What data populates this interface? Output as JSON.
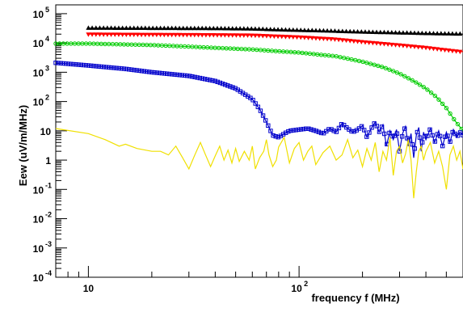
{
  "chart_data": {
    "type": "line",
    "title": "",
    "xlabel": "frequency f (MHz)",
    "ylabel": "Eew (uV/m/MHz)",
    "x_scale": "log",
    "y_scale": "log",
    "xlim": [
      7,
      600
    ],
    "ylim": [
      0.0001,
      200000
    ],
    "grid": false,
    "legend": "none",
    "x_ticks": [
      {
        "value": 10,
        "label": "10"
      },
      {
        "value": 100,
        "label": "10",
        "exp": "2"
      }
    ],
    "y_ticks": [
      {
        "value": 0.0001,
        "label": "10",
        "exp": "-4"
      },
      {
        "value": 0.001,
        "label": "10",
        "exp": "-3"
      },
      {
        "value": 0.01,
        "label": "10",
        "exp": "-2"
      },
      {
        "value": 0.1,
        "label": "10",
        "exp": "-1"
      },
      {
        "value": 1,
        "label": "1"
      },
      {
        "value": 10,
        "label": "10"
      },
      {
        "value": 100,
        "label": "10",
        "exp": "2"
      },
      {
        "value": 1000,
        "label": "10",
        "exp": "3"
      },
      {
        "value": 10000,
        "label": "10",
        "exp": "4"
      },
      {
        "value": 100000,
        "label": "10",
        "exp": "5"
      }
    ],
    "series": [
      {
        "color": "#000000",
        "marker": "triangle-up",
        "points": [
          [
            10,
            32000
          ],
          [
            20,
            31500
          ],
          [
            40,
            31000
          ],
          [
            60,
            30000
          ],
          [
            80,
            28000
          ],
          [
            100,
            27000
          ],
          [
            150,
            25000
          ],
          [
            200,
            23500
          ],
          [
            300,
            22000
          ],
          [
            400,
            21000
          ],
          [
            600,
            20000
          ]
        ]
      },
      {
        "color": "#ff0000",
        "marker": "triangle-down",
        "points": [
          [
            10,
            20000
          ],
          [
            20,
            19500
          ],
          [
            40,
            19000
          ],
          [
            60,
            18500
          ],
          [
            80,
            17000
          ],
          [
            100,
            16000
          ],
          [
            150,
            13500
          ],
          [
            200,
            11000
          ],
          [
            300,
            8500
          ],
          [
            400,
            7000
          ],
          [
            500,
            5800
          ],
          [
            600,
            5000
          ]
        ]
      },
      {
        "color": "#00cc00",
        "marker": "circle",
        "points": [
          [
            7,
            9500
          ],
          [
            10,
            9500
          ],
          [
            20,
            8500
          ],
          [
            30,
            7500
          ],
          [
            40,
            6800
          ],
          [
            60,
            6000
          ],
          [
            80,
            5200
          ],
          [
            100,
            4700
          ],
          [
            150,
            3500
          ],
          [
            200,
            2300
          ],
          [
            250,
            1500
          ],
          [
            300,
            900
          ],
          [
            350,
            500
          ],
          [
            400,
            280
          ],
          [
            450,
            140
          ],
          [
            500,
            60
          ],
          [
            550,
            22
          ],
          [
            600,
            10
          ]
        ]
      },
      {
        "color": "#0000cc",
        "marker": "square",
        "points": [
          [
            7,
            2100
          ],
          [
            10,
            1700
          ],
          [
            15,
            1300
          ],
          [
            20,
            1000
          ],
          [
            30,
            750
          ],
          [
            40,
            500
          ],
          [
            50,
            280
          ],
          [
            60,
            120
          ],
          [
            65,
            55
          ],
          [
            70,
            20
          ],
          [
            75,
            7
          ],
          [
            80,
            6
          ],
          [
            85,
            8
          ],
          [
            90,
            10
          ],
          [
            100,
            11
          ],
          [
            110,
            12
          ],
          [
            120,
            10
          ],
          [
            130,
            8
          ],
          [
            140,
            12
          ],
          [
            150,
            9
          ],
          [
            160,
            18
          ],
          [
            170,
            12
          ],
          [
            180,
            9
          ],
          [
            190,
            11
          ],
          [
            200,
            15
          ],
          [
            210,
            6
          ],
          [
            220,
            12
          ],
          [
            230,
            20
          ],
          [
            240,
            9
          ],
          [
            250,
            16
          ],
          [
            260,
            3
          ],
          [
            270,
            10
          ],
          [
            280,
            5
          ],
          [
            290,
            11
          ],
          [
            300,
            2
          ],
          [
            310,
            8
          ],
          [
            320,
            14
          ],
          [
            330,
            3
          ],
          [
            340,
            8
          ],
          [
            350,
            1.2
          ],
          [
            360,
            7
          ],
          [
            370,
            13
          ],
          [
            380,
            2
          ],
          [
            390,
            9
          ],
          [
            400,
            5
          ],
          [
            420,
            12
          ],
          [
            440,
            4
          ],
          [
            460,
            10
          ],
          [
            480,
            3
          ],
          [
            500,
            9
          ],
          [
            520,
            4
          ],
          [
            540,
            11
          ],
          [
            560,
            6
          ],
          [
            580,
            9
          ],
          [
            600,
            7
          ]
        ]
      },
      {
        "color": "#f0e000",
        "marker": "none",
        "points": [
          [
            7,
            12
          ],
          [
            10,
            8
          ],
          [
            12,
            5
          ],
          [
            14,
            3
          ],
          [
            15,
            3.5
          ],
          [
            17,
            2.5
          ],
          [
            20,
            2
          ],
          [
            22,
            2
          ],
          [
            24,
            1.5
          ],
          [
            26,
            3
          ],
          [
            28,
            1.2
          ],
          [
            30,
            0.5
          ],
          [
            32,
            1.5
          ],
          [
            34,
            4
          ],
          [
            36,
            1.5
          ],
          [
            38,
            0.6
          ],
          [
            40,
            1.4
          ],
          [
            42,
            3
          ],
          [
            44,
            1
          ],
          [
            46,
            2.2
          ],
          [
            48,
            0.8
          ],
          [
            50,
            2.5
          ],
          [
            52,
            0.9
          ],
          [
            55,
            2
          ],
          [
            58,
            1
          ],
          [
            60,
            3
          ],
          [
            62,
            0.5
          ],
          [
            65,
            1.2
          ],
          [
            68,
            2
          ],
          [
            70,
            5
          ],
          [
            72,
            1.5
          ],
          [
            75,
            0.6
          ],
          [
            78,
            1
          ],
          [
            80,
            2.8
          ],
          [
            85,
            6
          ],
          [
            90,
            0.8
          ],
          [
            95,
            2.5
          ],
          [
            100,
            4
          ],
          [
            105,
            1
          ],
          [
            110,
            2
          ],
          [
            115,
            3
          ],
          [
            120,
            0.7
          ],
          [
            130,
            1.8
          ],
          [
            140,
            3
          ],
          [
            150,
            1
          ],
          [
            160,
            1.5
          ],
          [
            170,
            5
          ],
          [
            180,
            1.2
          ],
          [
            190,
            2.2
          ],
          [
            200,
            0.6
          ],
          [
            210,
            2.5
          ],
          [
            220,
            1
          ],
          [
            230,
            4
          ],
          [
            240,
            0.4
          ],
          [
            250,
            2
          ],
          [
            260,
            1
          ],
          [
            270,
            6
          ],
          [
            280,
            0.3
          ],
          [
            290,
            2
          ],
          [
            300,
            3
          ],
          [
            310,
            0.8
          ],
          [
            320,
            1.6
          ],
          [
            330,
            5
          ],
          [
            340,
            1
          ],
          [
            350,
            0.05
          ],
          [
            360,
            0.4
          ],
          [
            370,
            2
          ],
          [
            380,
            3
          ],
          [
            390,
            1
          ],
          [
            400,
            2
          ],
          [
            420,
            4
          ],
          [
            440,
            0.8
          ],
          [
            460,
            2
          ],
          [
            480,
            0.6
          ],
          [
            500,
            0.1
          ],
          [
            520,
            1.5
          ],
          [
            540,
            3
          ],
          [
            560,
            1
          ],
          [
            580,
            2
          ],
          [
            600,
            0.5
          ]
        ]
      }
    ]
  }
}
